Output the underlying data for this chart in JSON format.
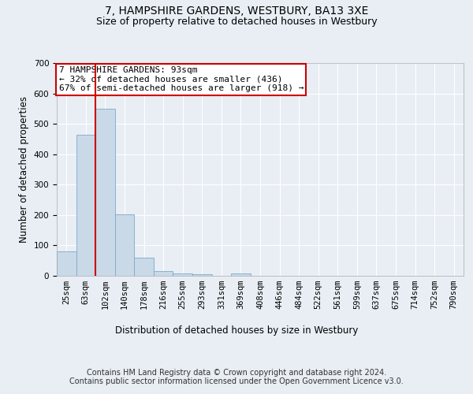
{
  "title": "7, HAMPSHIRE GARDENS, WESTBURY, BA13 3XE",
  "subtitle": "Size of property relative to detached houses in Westbury",
  "xlabel": "Distribution of detached houses by size in Westbury",
  "ylabel": "Number of detached properties",
  "bar_labels": [
    "25sqm",
    "63sqm",
    "102sqm",
    "140sqm",
    "178sqm",
    "216sqm",
    "255sqm",
    "293sqm",
    "331sqm",
    "369sqm",
    "408sqm",
    "446sqm",
    "484sqm",
    "522sqm",
    "561sqm",
    "599sqm",
    "637sqm",
    "675sqm",
    "714sqm",
    "752sqm",
    "790sqm"
  ],
  "bar_values": [
    80,
    465,
    550,
    202,
    60,
    15,
    7,
    6,
    0,
    7,
    0,
    0,
    0,
    0,
    0,
    0,
    0,
    0,
    0,
    0,
    0
  ],
  "bar_color": "#c9d9e8",
  "bar_edge_color": "#7aaac8",
  "vline_x": 2,
  "vline_color": "#cc0000",
  "ylim": [
    0,
    700
  ],
  "yticks": [
    0,
    100,
    200,
    300,
    400,
    500,
    600,
    700
  ],
  "annotation_text": "7 HAMPSHIRE GARDENS: 93sqm\n← 32% of detached houses are smaller (436)\n67% of semi-detached houses are larger (918) →",
  "annotation_box_color": "#ffffff",
  "annotation_box_edge": "#cc0000",
  "footer_text": "Contains HM Land Registry data © Crown copyright and database right 2024.\nContains public sector information licensed under the Open Government Licence v3.0.",
  "bg_color": "#e8eef4",
  "plot_bg_color": "#e8eef4",
  "grid_color": "#ffffff",
  "title_fontsize": 10,
  "subtitle_fontsize": 9,
  "axis_label_fontsize": 8.5,
  "tick_fontsize": 7.5,
  "footer_fontsize": 7,
  "annot_fontsize": 8
}
